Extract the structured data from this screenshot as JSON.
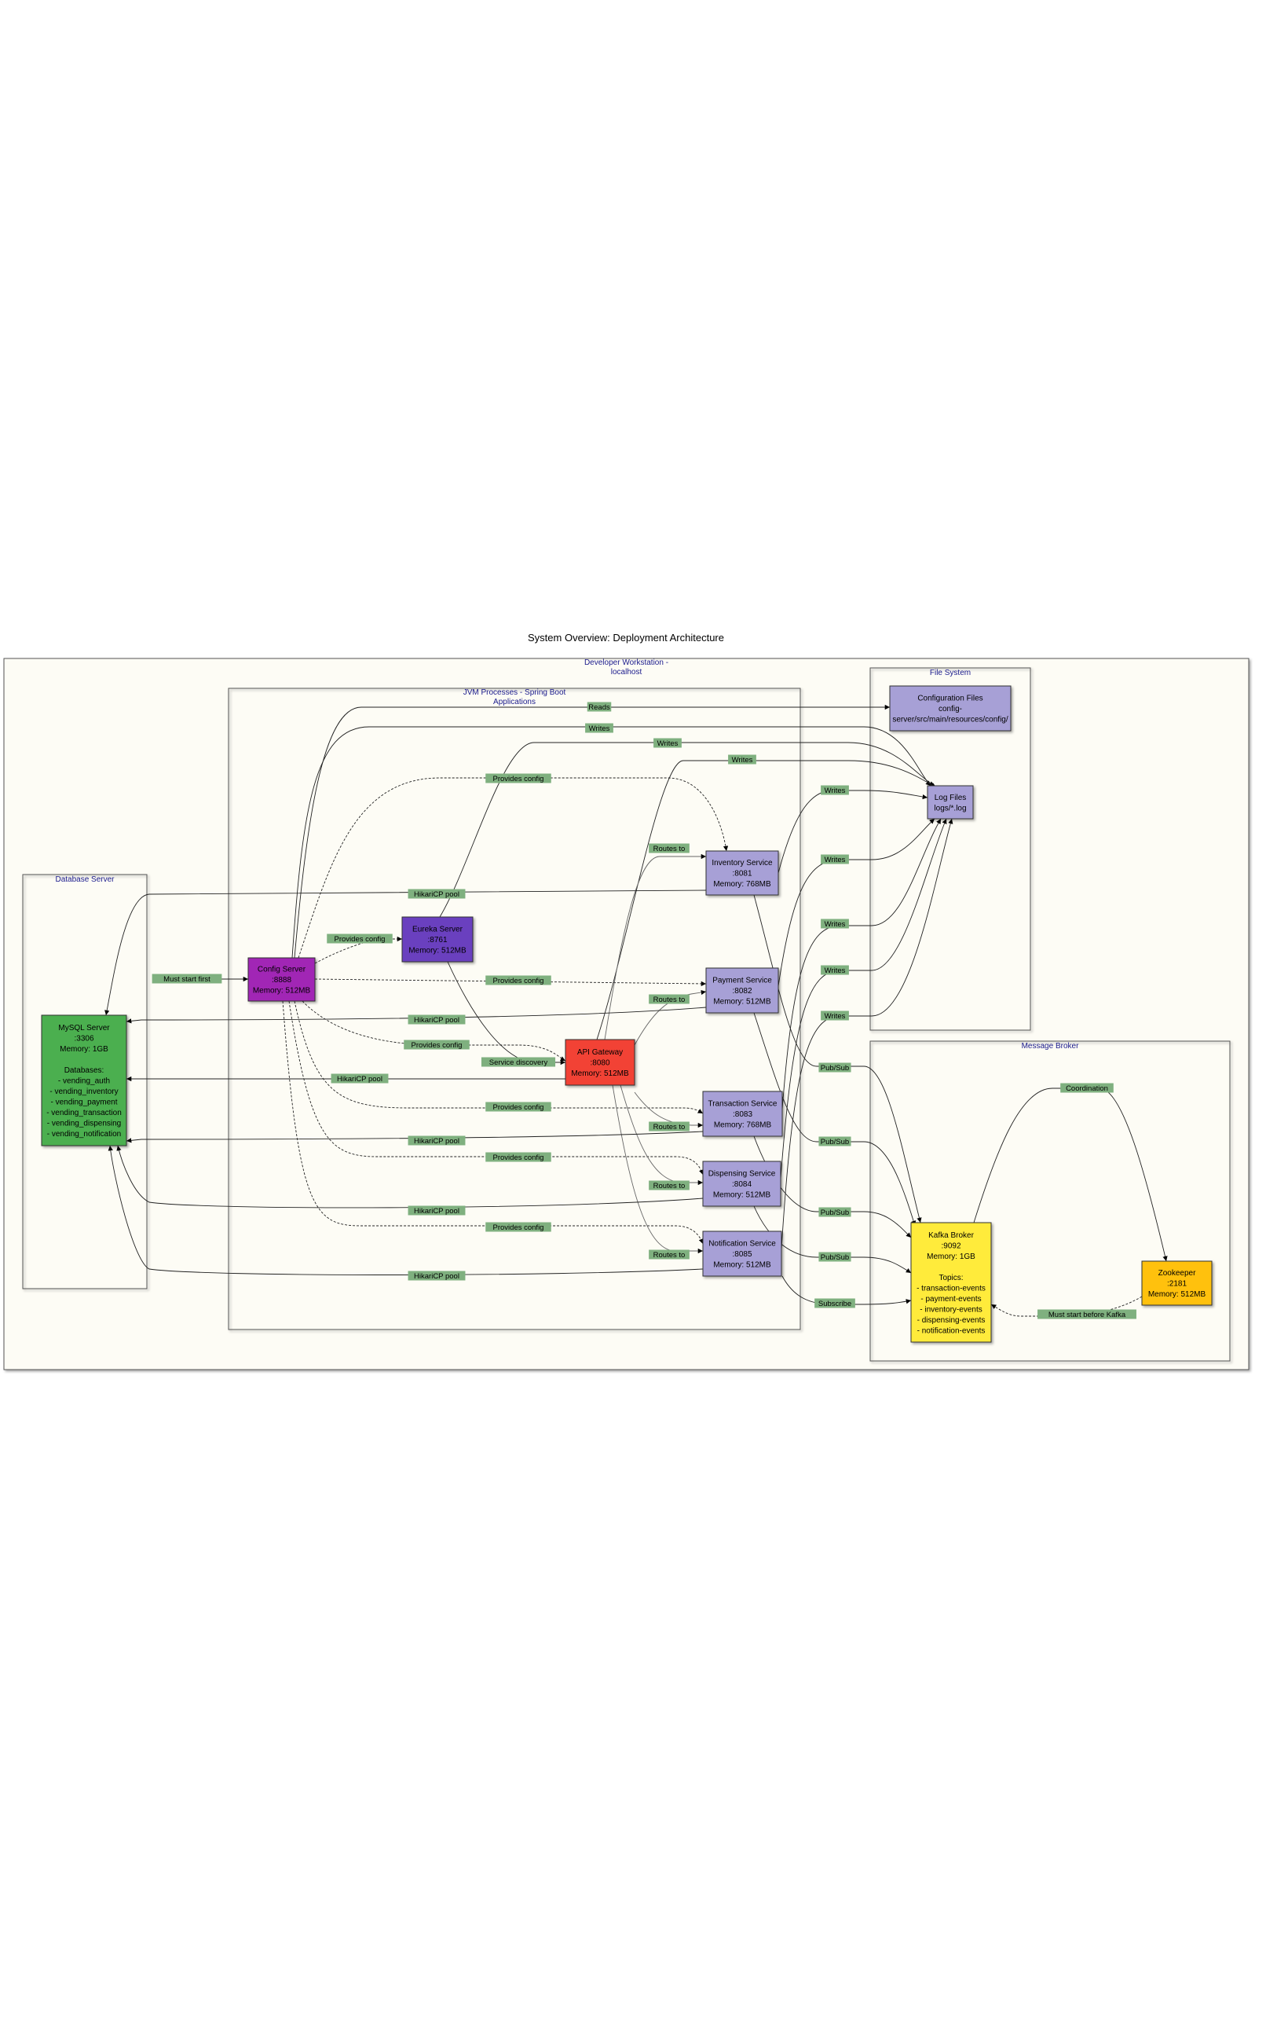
{
  "title": "System Overview: Deployment Architecture",
  "colors": {
    "workstation_bg": "#fdfcf5",
    "config_server": "#a128b5",
    "eureka_server": "#6a3fbf",
    "api_gateway": "#f24236",
    "service": "#a7a0d6",
    "mysql": "#4caf50",
    "kafka": "#ffeb3b",
    "zookeeper": "#ffc107",
    "files": "#a7a0d6",
    "edge_label_bg": "#7fb07f",
    "cluster_text": "#1a1a8c"
  },
  "clusters": {
    "workstation": [
      "Developer Workstation -",
      "localhost"
    ],
    "jvm": [
      "JVM Processes - Spring Boot",
      "Applications"
    ],
    "database": [
      "Database Server"
    ],
    "filesystem": [
      "File System"
    ],
    "broker": [
      "Message Broker"
    ]
  },
  "nodes": {
    "config_server": [
      "Config Server",
      ":8888",
      "Memory: 512MB"
    ],
    "eureka": [
      "Eureka Server",
      ":8761",
      "Memory: 512MB"
    ],
    "gateway": [
      "API Gateway",
      ":8080",
      "Memory: 512MB"
    ],
    "inventory": [
      "Inventory Service",
      ":8081",
      "Memory: 768MB"
    ],
    "payment": [
      "Payment Service",
      ":8082",
      "Memory: 512MB"
    ],
    "transaction": [
      "Transaction Service",
      ":8083",
      "Memory: 768MB"
    ],
    "dispensing": [
      "Dispensing Service",
      ":8084",
      "Memory: 512MB"
    ],
    "notification": [
      "Notification Service",
      ":8085",
      "Memory: 512MB"
    ],
    "mysql": [
      "MySQL Server",
      ":3306",
      "Memory: 1GB",
      "",
      "Databases:",
      "- vending_auth",
      "- vending_inventory",
      "- vending_payment",
      "- vending_transaction",
      "- vending_dispensing",
      "- vending_notification"
    ],
    "config_files": [
      "Configuration Files",
      "config-",
      "server/src/main/resources/config/"
    ],
    "log_files": [
      "Log Files",
      "logs/*.log"
    ],
    "kafka": [
      "Kafka Broker",
      ":9092",
      "Memory: 1GB",
      "",
      "Topics:",
      "- transaction-events",
      "- payment-events",
      "- inventory-events",
      "- dispensing-events",
      "- notification-events"
    ],
    "zookeeper": [
      "Zookeeper",
      ":2181",
      "Memory: 512MB"
    ]
  },
  "edge_labels": {
    "must_start_first": "Must start first",
    "provides_config": "Provides config",
    "reads": "Reads",
    "writes": "Writes",
    "routes_to": "Routes to",
    "hikari": "HikariCP pool",
    "service_discovery": "Service discovery",
    "pub_sub": "Pub/Sub",
    "subscribe": "Subscribe",
    "coordination": "Coordination",
    "must_start_before_kafka": "Must start before Kafka"
  }
}
